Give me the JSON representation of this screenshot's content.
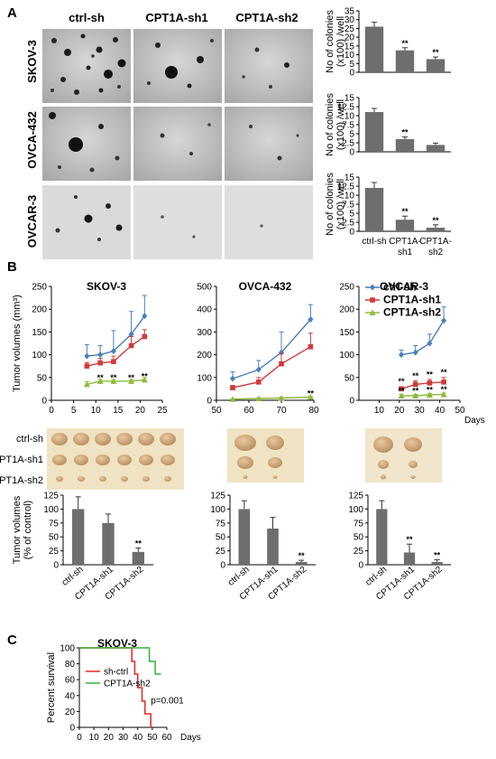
{
  "panel_labels": {
    "a": "A",
    "b": "B",
    "c": "C"
  },
  "panel_a": {
    "column_headers": [
      "ctrl-sh",
      "CPT1A-sh1",
      "CPT1A-sh2"
    ],
    "row_labels": [
      "SKOV-3",
      "OVCA-432",
      "OVCAR-3"
    ]
  },
  "panel_b": {
    "days_label": "Days",
    "photo_row_labels": [
      "ctrl-sh",
      "CPT1A-sh1",
      "CPT1A-sh2"
    ]
  },
  "chart_data": [
    {
      "id": "a1",
      "type": "bar",
      "categories": [
        "ctrl-sh",
        "CPT1A-sh1",
        "CPT1A-sh2"
      ],
      "values": [
        26,
        12.5,
        7.5
      ],
      "errors": [
        2.5,
        1.5,
        1.2
      ],
      "significance": [
        "",
        "**",
        "**"
      ],
      "ylabel": [
        "No of colonies",
        "(x100) /well"
      ],
      "ylim": [
        0,
        35
      ],
      "yticks": [
        0,
        5,
        10,
        15,
        20,
        25,
        30,
        35
      ],
      "color": "#6e6e6e"
    },
    {
      "id": "a2",
      "type": "bar",
      "categories": [
        "ctrl-sh",
        "CPT1A-sh1",
        "CPT1A-sh2"
      ],
      "values": [
        11,
        3.5,
        1.9
      ],
      "errors": [
        1.0,
        0.6,
        0.5
      ],
      "significance": [
        "",
        "**",
        ""
      ],
      "ylabel": [
        "No of colonies",
        "(x100) /well"
      ],
      "ylim": [
        0,
        15
      ],
      "yticks": [
        0,
        2.5,
        5,
        7.5,
        10,
        12.5,
        15
      ],
      "color": "#6e6e6e"
    },
    {
      "id": "a3",
      "type": "bar",
      "categories": [
        "ctrl-sh",
        "CPT1A-sh1",
        "CPT1A-sh2"
      ],
      "category_lines": [
        [
          "ctrl-sh"
        ],
        [
          "CPT1A-",
          "sh1"
        ],
        [
          "CPT1A-",
          "sh2"
        ]
      ],
      "values": [
        12,
        3.2,
        1.0
      ],
      "errors": [
        1.5,
        1.0,
        0.8
      ],
      "significance": [
        "",
        "**",
        "**"
      ],
      "ylabel": [
        "No of colonies",
        "(x100) /well"
      ],
      "ylim": [
        0,
        15
      ],
      "yticks": [
        0,
        2.5,
        5,
        7.5,
        10,
        12.5,
        15
      ],
      "color": "#6e6e6e"
    },
    {
      "id": "b_skov3",
      "type": "line",
      "title": "SKOV-3",
      "ylabel": "Tumor volumes (mm³)",
      "xlim": [
        0,
        25
      ],
      "xticks": [
        0,
        5,
        10,
        15,
        20,
        25
      ],
      "ylim": [
        0,
        250
      ],
      "yticks": [
        0,
        50,
        100,
        150,
        200,
        250
      ],
      "series": [
        {
          "x": [
            8,
            11,
            14,
            18,
            21
          ],
          "y": [
            97,
            100,
            108,
            145,
            185
          ],
          "err": [
            25,
            20,
            45,
            50,
            45
          ],
          "color": "#4a7ebb",
          "marker": "diamond"
        },
        {
          "x": [
            8,
            11,
            14,
            18,
            21
          ],
          "y": [
            75,
            82,
            85,
            120,
            140
          ],
          "err": [
            8,
            10,
            12,
            20,
            15
          ],
          "color": "#d03a3a",
          "marker": "square"
        },
        {
          "x": [
            8,
            11,
            14,
            18,
            21
          ],
          "y": [
            35,
            42,
            42,
            42,
            45
          ],
          "err": [
            6,
            4,
            4,
            4,
            5
          ],
          "color": "#8dbb3c",
          "marker": "triangle"
        }
      ],
      "annotations": [
        {
          "x": 11,
          "y": 44,
          "text": "**"
        },
        {
          "x": 14,
          "y": 44,
          "text": "**"
        },
        {
          "x": 18,
          "y": 44,
          "text": "**"
        },
        {
          "x": 21,
          "y": 47,
          "text": "**"
        }
      ]
    },
    {
      "id": "b_ovca432",
      "type": "line",
      "title": "OVCA-432",
      "xlim": [
        50,
        80
      ],
      "xticks": [
        50,
        60,
        70,
        80
      ],
      "ylim": [
        0,
        500
      ],
      "yticks": [
        0,
        100,
        200,
        300,
        400,
        500
      ],
      "series": [
        {
          "x": [
            55,
            63,
            70,
            79
          ],
          "y": [
            95,
            135,
            210,
            355
          ],
          "err": [
            30,
            40,
            90,
            65
          ],
          "color": "#4a7ebb",
          "marker": "diamond"
        },
        {
          "x": [
            55,
            63,
            70,
            79
          ],
          "y": [
            55,
            80,
            160,
            235
          ],
          "err": [
            10,
            20,
            45,
            60
          ],
          "color": "#d03a3a",
          "marker": "square"
        },
        {
          "x": [
            55,
            63,
            70,
            79
          ],
          "y": [
            5,
            8,
            10,
            14
          ],
          "err": [
            2,
            2,
            3,
            3
          ],
          "color": "#8dbb3c",
          "marker": "triangle"
        }
      ],
      "annotations": [
        {
          "x": 79,
          "y": 18,
          "text": "**"
        }
      ]
    },
    {
      "id": "b_ovcar3",
      "type": "line",
      "title": "OVCAR-3",
      "xlim": [
        0,
        50
      ],
      "xticks": [
        10,
        20,
        30,
        40,
        50
      ],
      "ylim": [
        0,
        250
      ],
      "yticks": [
        0,
        50,
        100,
        150,
        200,
        250
      ],
      "legend": "top-left",
      "series": [
        {
          "name": "ctrl-sh",
          "x": [
            21,
            28,
            35,
            42
          ],
          "y": [
            100,
            105,
            125,
            175
          ],
          "err": [
            10,
            15,
            20,
            30
          ],
          "color": "#4a7ebb",
          "marker": "diamond"
        },
        {
          "name": "CPT1A-sh1",
          "x": [
            21,
            28,
            35,
            42
          ],
          "y": [
            25,
            35,
            38,
            40
          ],
          "err": [
            5,
            8,
            8,
            10
          ],
          "color": "#d03a3a",
          "marker": "square"
        },
        {
          "name": "CPT1A-sh2",
          "x": [
            21,
            28,
            35,
            42
          ],
          "y": [
            10,
            10,
            12,
            13
          ],
          "err": [
            3,
            3,
            3,
            3
          ],
          "color": "#8dbb3c",
          "marker": "triangle"
        }
      ],
      "annotations": [
        {
          "x": 21,
          "y": 36,
          "text": "**"
        },
        {
          "x": 28,
          "y": 48,
          "text": "**"
        },
        {
          "x": 35,
          "y": 51,
          "text": "**"
        },
        {
          "x": 42,
          "y": 56,
          "text": "**"
        },
        {
          "x": 21,
          "y": 15,
          "text": "**"
        },
        {
          "x": 28,
          "y": 15,
          "text": "**"
        },
        {
          "x": 35,
          "y": 17,
          "text": "**"
        },
        {
          "x": 42,
          "y": 18,
          "text": "**"
        }
      ]
    },
    {
      "id": "b_bar1",
      "type": "bar",
      "categories": [
        "ctrl-sh",
        "CPT1A-sh1",
        "CPT1A-sh2"
      ],
      "values": [
        100,
        75,
        23
      ],
      "errors": [
        22,
        16,
        7
      ],
      "significance": [
        "",
        "",
        "**"
      ],
      "ylabel": [
        "Tumor volumes",
        "(% of control)"
      ],
      "ylim": [
        0,
        125
      ],
      "yticks": [
        0,
        25,
        50,
        75,
        100,
        125
      ],
      "color": "#6e6e6e"
    },
    {
      "id": "b_bar2",
      "type": "bar",
      "categories": [
        "ctrl-sh",
        "CPT1A-sh1",
        "CPT1A-sh2"
      ],
      "values": [
        100,
        65,
        5
      ],
      "errors": [
        15,
        20,
        3
      ],
      "significance": [
        "",
        "",
        "**"
      ],
      "ylim": [
        0,
        125
      ],
      "yticks": [
        0,
        25,
        50,
        75,
        100,
        125
      ],
      "color": "#6e6e6e"
    },
    {
      "id": "b_bar3",
      "type": "bar",
      "categories": [
        "ctrl-sh",
        "CPT1A-sh1",
        "CPT1A-sh2"
      ],
      "values": [
        100,
        22,
        5
      ],
      "errors": [
        15,
        15,
        4
      ],
      "significance": [
        "",
        "**",
        "**"
      ],
      "ylim": [
        0,
        125
      ],
      "yticks": [
        0,
        25,
        50,
        75,
        100,
        125
      ],
      "color": "#6e6e6e"
    },
    {
      "id": "c_survival",
      "type": "line",
      "title": "SKOV-3",
      "xlabel": "Days",
      "ylabel": "Percent survival",
      "xlim": [
        0,
        60
      ],
      "xticks": [
        0,
        10,
        20,
        30,
        40,
        50,
        60
      ],
      "ylim": [
        0,
        100
      ],
      "yticks": [
        0,
        20,
        40,
        60,
        80,
        100
      ],
      "legend": "center-left",
      "series": [
        {
          "name": "sh-ctrl",
          "x": [
            0,
            36,
            36,
            38,
            38,
            40,
            40,
            43,
            43,
            45,
            45,
            49,
            49
          ],
          "y": [
            100,
            100,
            83,
            83,
            67,
            67,
            50,
            50,
            33,
            33,
            17,
            17,
            0
          ],
          "color": "#e5261f"
        },
        {
          "name": "CPT1A-sh2",
          "x": [
            0,
            48,
            48,
            52,
            52,
            56
          ],
          "y": [
            100,
            100,
            83,
            83,
            67,
            67
          ],
          "color": "#35b23a"
        }
      ],
      "annotations": [
        {
          "x": 49,
          "y": 30,
          "text": "p=0.001"
        }
      ]
    }
  ]
}
